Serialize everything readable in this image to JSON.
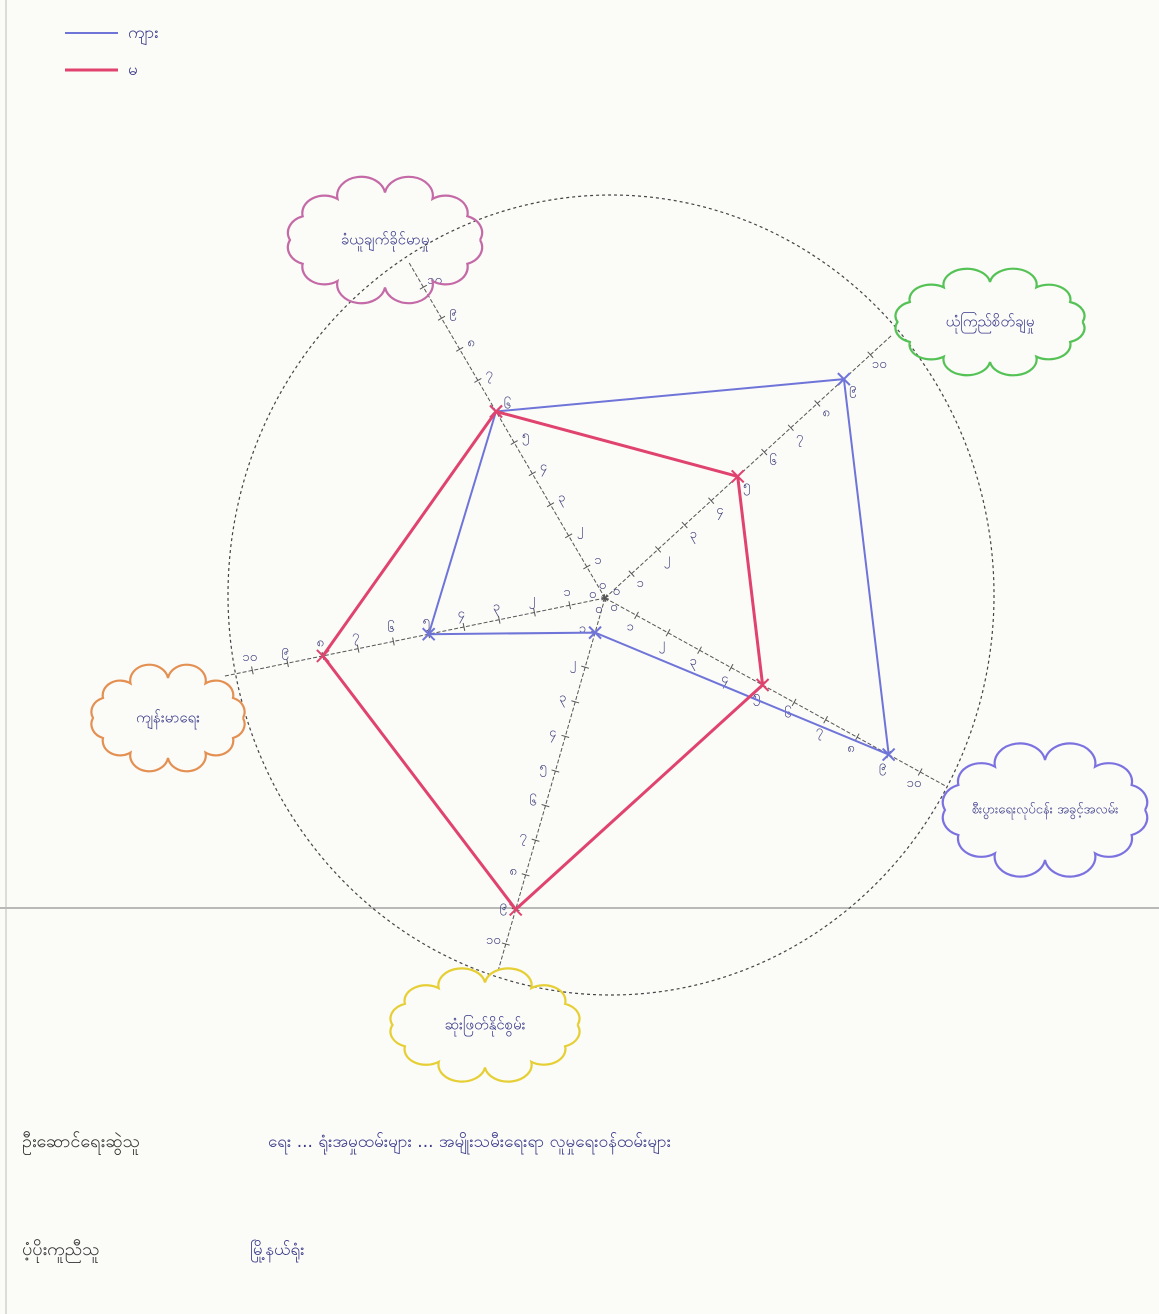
{
  "chart_data": {
    "type": "radar",
    "axes": [
      "ခံယူချက်ခိုင်မာမှု",
      "ယုံကြည်စိတ်ချမှု",
      "စီးပွားရေးလုပ်ငန်း အခွင့်အလမ်း",
      "ဆုံးဖြတ်နိုင်စွမ်း",
      "ကျန်းမာရေး"
    ],
    "series": [
      {
        "name": "ကျား",
        "color": "#6f74d8",
        "values": [
          6,
          9,
          9,
          1,
          5
        ]
      },
      {
        "name": "မ",
        "color": "#e0436e",
        "values": [
          6,
          5,
          5,
          9,
          8
        ]
      }
    ],
    "rlim": [
      0,
      10
    ],
    "rticks": [
      {
        "value": 0,
        "label": "၀"
      },
      {
        "value": 1,
        "label": "၁"
      },
      {
        "value": 2,
        "label": "၂"
      },
      {
        "value": 3,
        "label": "၃"
      },
      {
        "value": 4,
        "label": "၄"
      },
      {
        "value": 5,
        "label": "၅"
      },
      {
        "value": 6,
        "label": "၆"
      },
      {
        "value": 7,
        "label": "၇"
      },
      {
        "value": 8,
        "label": "၈"
      },
      {
        "value": 9,
        "label": "၉"
      },
      {
        "value": 10,
        "label": "၁၀"
      }
    ],
    "legend": "top-left"
  },
  "footer": [
    {
      "label": "ဦးဆောင်ရေးဆွဲသူ",
      "value": "ရေး ... ရုံးအမှုထမ်းများ ... အမျိုးသမီးရေးရာ လူမှုရေးဝန်ထမ်းများ"
    },
    {
      "label": "ပံ့ပိုးကူညီသူ",
      "value": "မြို့နယ်ရုံး"
    }
  ]
}
